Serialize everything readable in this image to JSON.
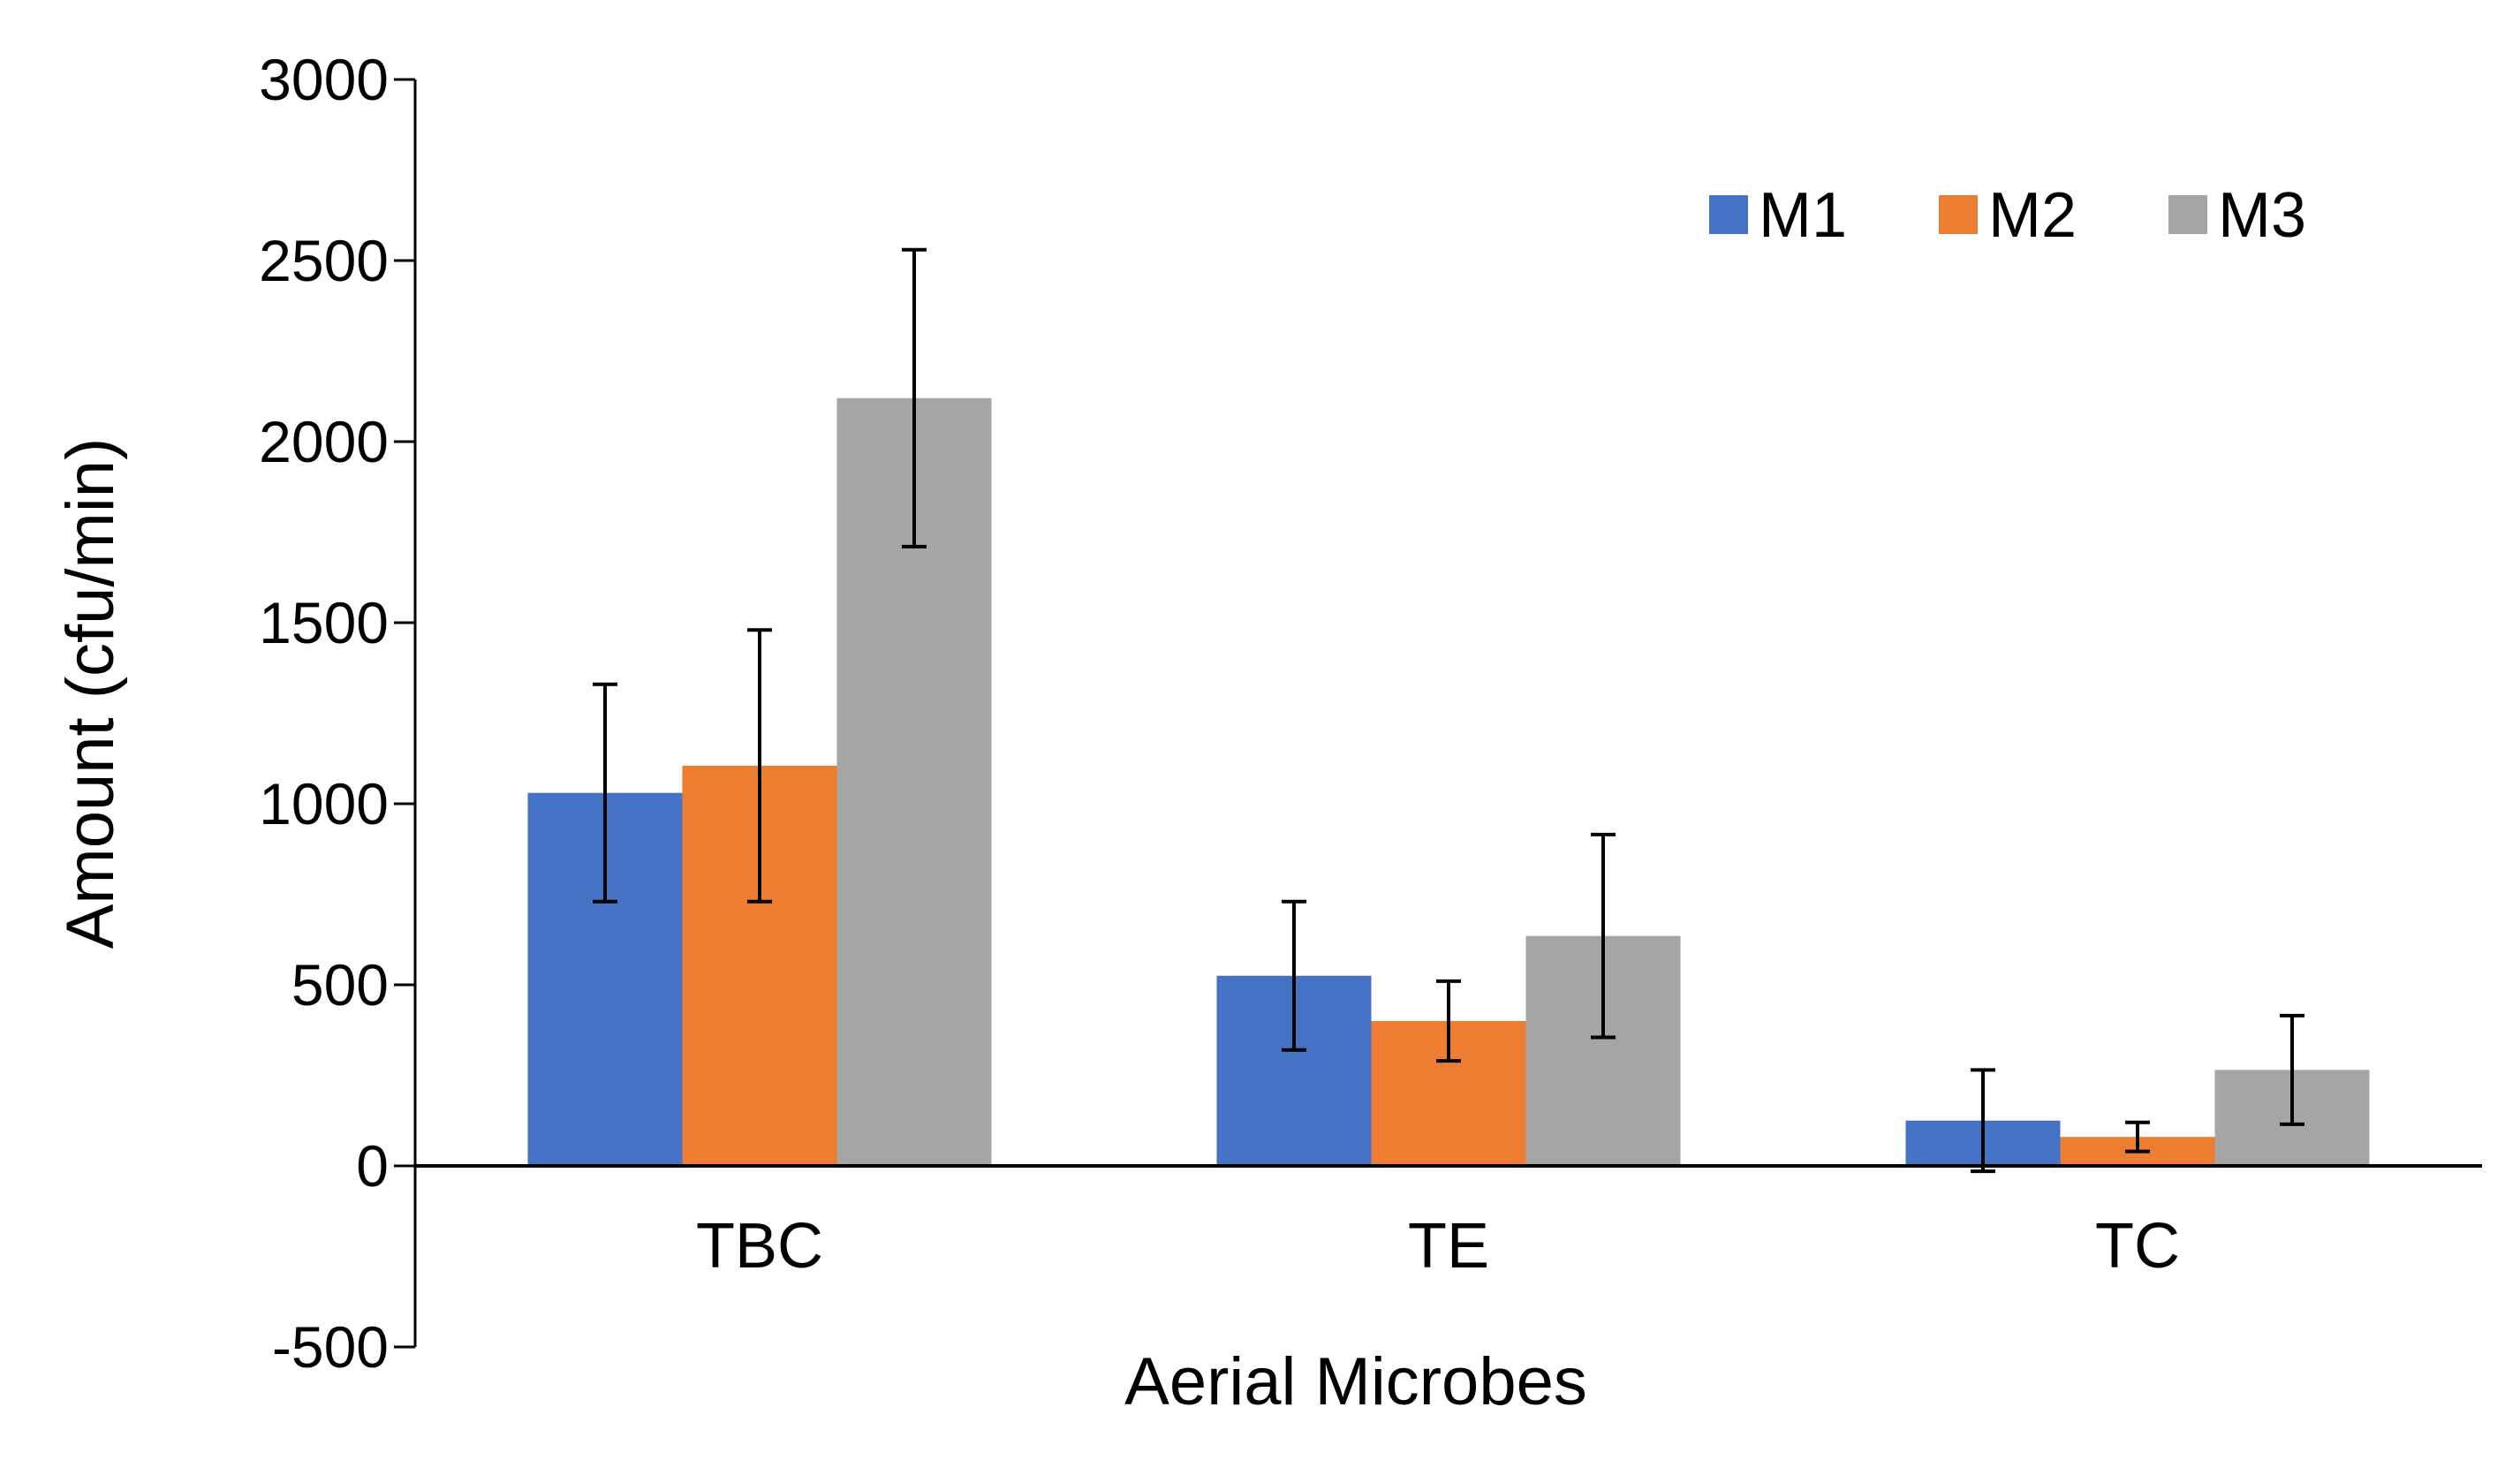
{
  "chart_data": {
    "type": "bar",
    "title": "",
    "xlabel": "Aerial Microbes",
    "ylabel": "Amount (cfu/min)",
    "ylim": [
      -500,
      3000
    ],
    "yticks": [
      -500,
      0,
      500,
      1000,
      1500,
      2000,
      2500,
      3000
    ],
    "categories": [
      "TBC",
      "TE",
      "TC"
    ],
    "series": [
      {
        "name": "M1",
        "color": "#4472C4",
        "values": [
          1030,
          525,
          125
        ],
        "errors": [
          300,
          205,
          140
        ]
      },
      {
        "name": "M2",
        "color": "#ED7D31",
        "values": [
          1105,
          400,
          80
        ],
        "errors": [
          375,
          110,
          40
        ]
      },
      {
        "name": "M3",
        "color": "#A5A5A5",
        "values": [
          2120,
          635,
          265
        ],
        "errors": [
          410,
          280,
          150
        ]
      }
    ],
    "legend_position": "top-right",
    "grid": false
  }
}
